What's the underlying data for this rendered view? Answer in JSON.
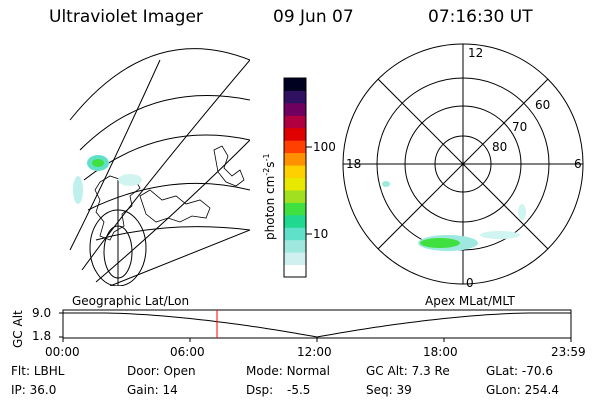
{
  "header": {
    "title": "Ultraviolet Imager",
    "date": "09 Jun 07",
    "time": "07:16:30 UT"
  },
  "colorbar": {
    "unit": "photon cm",
    "unit_exp1": "-2",
    "unit_s": "s",
    "unit_exp2": "-1",
    "tick_high": "100",
    "tick_low": "10",
    "colors": [
      "#ffffff",
      "#d0f0f0",
      "#9ee8e0",
      "#60e0c8",
      "#20d890",
      "#40e040",
      "#a0e020",
      "#e8e800",
      "#ffd000",
      "#ff9000",
      "#ff4000",
      "#e00000",
      "#b00040",
      "#700060",
      "#301060",
      "#000020"
    ]
  },
  "geo_panel": {
    "label": "Geographic Lat/Lon"
  },
  "polar_panel": {
    "label": "Apex  MLat/MLT",
    "mlt_top": "12",
    "mlt_left": "18",
    "mlt_right": "6",
    "mlt_bottom": "0",
    "lat_60": "60",
    "lat_70": "70",
    "lat_80": "80"
  },
  "altitude_plot": {
    "ylabel": "GC Alt",
    "y_high": "9.0",
    "y_low": "1.8",
    "x_ticks": [
      "00:00",
      "06:00",
      "12:00",
      "18:00",
      "23:59"
    ],
    "current_time_hours": 7.275,
    "marker_color": "#ff0000"
  },
  "info": {
    "flt_label": "Flt:",
    "flt_value": "LBHL",
    "ip_label": "IP:",
    "ip_value": "36.0",
    "door_label": "Door:",
    "door_value": "Open",
    "gain_label": "Gain:",
    "gain_value": "14",
    "mode_label": "Mode:",
    "mode_value": "Normal",
    "dsp_label": "Dsp:",
    "dsp_value": "-5.5",
    "gcalt_label": "GC Alt:",
    "gcalt_value": "7.3 Re",
    "seq_label": "Seq:",
    "seq_value": "39",
    "glat_label": "GLat:",
    "glat_value": "-70.6",
    "glon_label": "GLon:",
    "glon_value": "254.4"
  }
}
